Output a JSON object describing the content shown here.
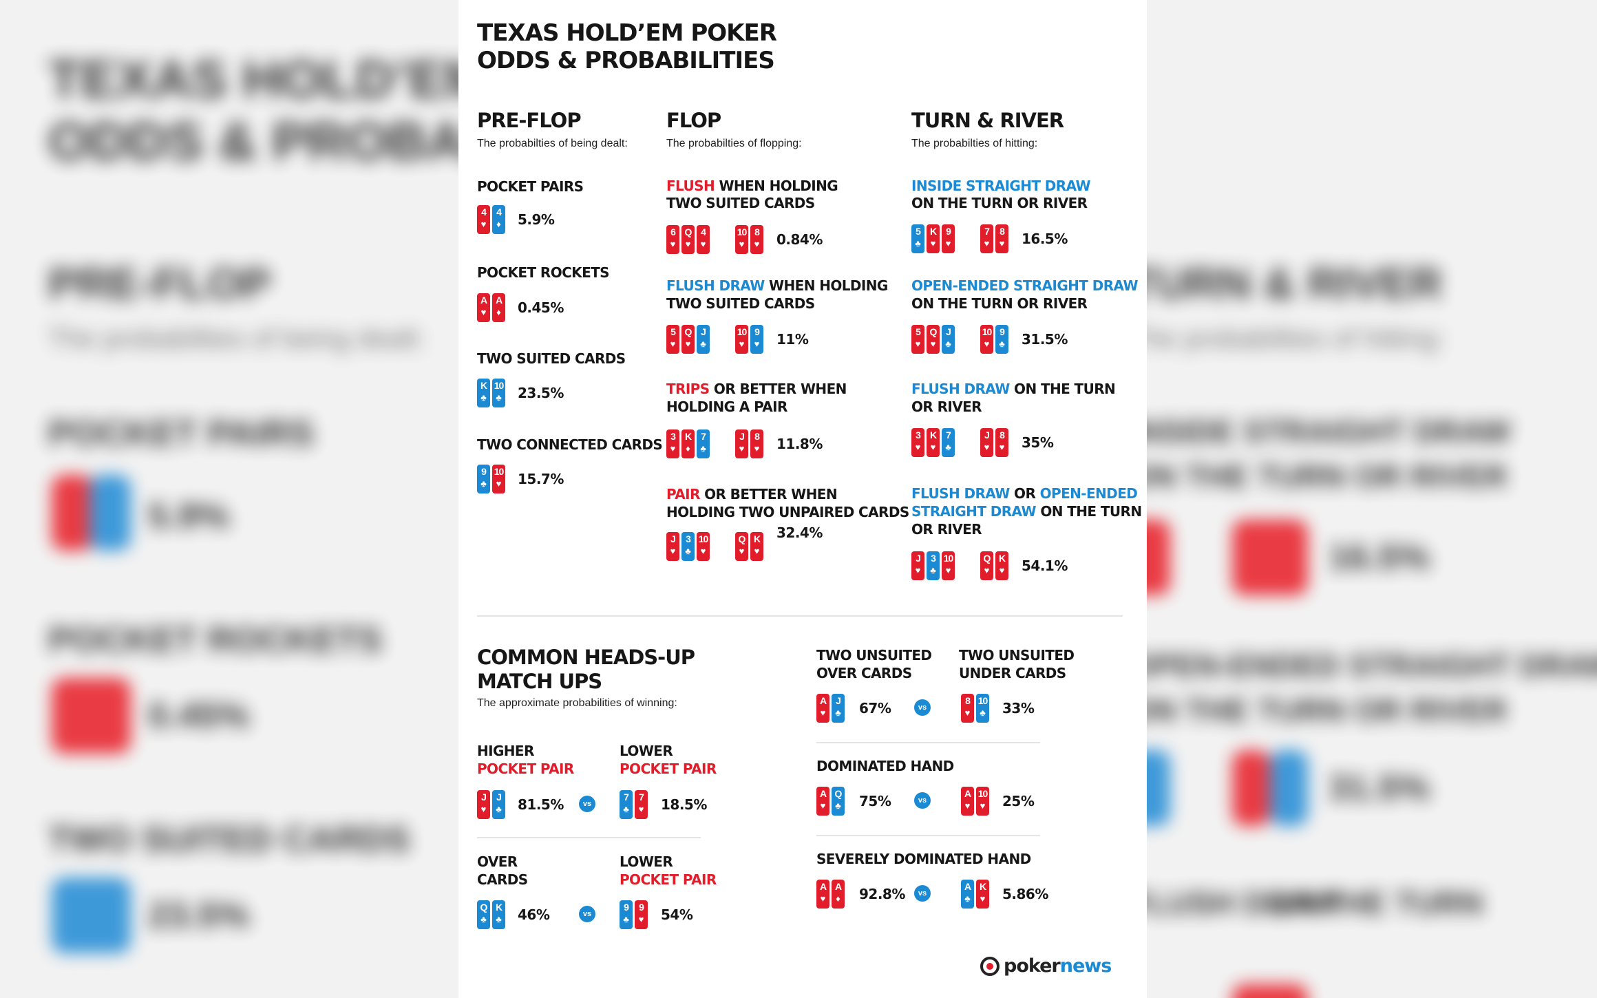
{
  "title": {
    "line1": "TEXAS HOLD’EM POKER",
    "line2": "ODDS & PROBABILITIES"
  },
  "preflop": {
    "heading": "PRE-FLOP",
    "sub": "The probabilties of being dealt:",
    "items": [
      {
        "label": "POCKET PAIRS",
        "pct": "5.9%",
        "cards": [
          {
            "rank": "4",
            "suit": "♥",
            "color": "red"
          },
          {
            "rank": "4",
            "suit": "♦",
            "color": "blue"
          }
        ]
      },
      {
        "label": "POCKET ROCKETS",
        "pct": "0.45%",
        "cards": [
          {
            "rank": "A",
            "suit": "♥",
            "color": "red"
          },
          {
            "rank": "A",
            "suit": "♦",
            "color": "red"
          }
        ]
      },
      {
        "label": "TWO SUITED CARDS",
        "pct": "23.5%",
        "cards": [
          {
            "rank": "K",
            "suit": "♣",
            "color": "blue"
          },
          {
            "rank": "10",
            "suit": "♣",
            "color": "blue"
          }
        ]
      },
      {
        "label": "TWO CONNECTED CARDS",
        "pct": "15.7%",
        "cards": [
          {
            "rank": "9",
            "suit": "♣",
            "color": "blue"
          },
          {
            "rank": "10",
            "suit": "♥",
            "color": "red"
          }
        ]
      }
    ]
  },
  "flop": {
    "heading": "FLOP",
    "sub": "The probabilties of flopping:",
    "items": [
      {
        "hl": "FLUSH",
        "rest1": " WHEN HOLDING",
        "line2": "TWO SUITED CARDS",
        "pct": "0.84%",
        "board": [
          {
            "rank": "6",
            "suit": "♥",
            "color": "red"
          },
          {
            "rank": "Q",
            "suit": "♥",
            "color": "red"
          },
          {
            "rank": "4",
            "suit": "♥",
            "color": "red"
          }
        ],
        "hand": [
          {
            "rank": "10",
            "suit": "♥",
            "color": "red"
          },
          {
            "rank": "8",
            "suit": "♥",
            "color": "red"
          }
        ]
      },
      {
        "hl": "FLUSH DRAW",
        "rest1": " WHEN HOLDING",
        "line2": "TWO SUITED CARDS",
        "pct": "11%",
        "board": [
          {
            "rank": "5",
            "suit": "♥",
            "color": "red"
          },
          {
            "rank": "Q",
            "suit": "♥",
            "color": "red"
          },
          {
            "rank": "J",
            "suit": "♣",
            "color": "blue"
          }
        ],
        "hand": [
          {
            "rank": "10",
            "suit": "♥",
            "color": "red"
          },
          {
            "rank": "9",
            "suit": "♥",
            "color": "blue"
          }
        ]
      },
      {
        "hl": "TRIPS",
        "rest1": " OR BETTER WHEN",
        "line2": "HOLDING A PAIR",
        "pct": "11.8%",
        "board": [
          {
            "rank": "3",
            "suit": "♥",
            "color": "red"
          },
          {
            "rank": "K",
            "suit": "♦",
            "color": "red"
          },
          {
            "rank": "7",
            "suit": "♣",
            "color": "blue"
          }
        ],
        "hand": [
          {
            "rank": "J",
            "suit": "♥",
            "color": "red"
          },
          {
            "rank": "8",
            "suit": "♥",
            "color": "red"
          }
        ]
      },
      {
        "hl": "PAIR",
        "rest1": " OR BETTER WHEN",
        "line2": "HOLDING TWO UNPAIRED CARDS",
        "pct": "32.4%",
        "board": [
          {
            "rank": "J",
            "suit": "♥",
            "color": "red"
          },
          {
            "rank": "3",
            "suit": "♣",
            "color": "blue"
          },
          {
            "rank": "10",
            "suit": "♥",
            "color": "red"
          }
        ],
        "hand": [
          {
            "rank": "Q",
            "suit": "♥",
            "color": "red"
          },
          {
            "rank": "K",
            "suit": "♥",
            "color": "red"
          }
        ]
      }
    ]
  },
  "turn_river": {
    "heading": "TURN & RIVER",
    "sub": "The probabilties of hitting:",
    "items": [
      {
        "l1a": "INSIDE STRAIGHT DRAW",
        "l1b": "",
        "l2a": "",
        "l2b": "ON THE TURN OR RIVER",
        "l3": "",
        "pct": "16.5%",
        "board": [
          {
            "rank": "5",
            "suit": "♣",
            "color": "blue"
          },
          {
            "rank": "K",
            "suit": "♥",
            "color": "red"
          },
          {
            "rank": "9",
            "suit": "♥",
            "color": "red"
          }
        ],
        "hand": [
          {
            "rank": "7",
            "suit": "♥",
            "color": "red"
          },
          {
            "rank": "8",
            "suit": "♥",
            "color": "red"
          }
        ]
      },
      {
        "l1a": "OPEN-ENDED STRAIGHT DRAW",
        "l1b": "",
        "l2a": "",
        "l2b": "ON THE TURN OR RIVER",
        "l3": "",
        "pct": "31.5%",
        "board": [
          {
            "rank": "5",
            "suit": "♥",
            "color": "red"
          },
          {
            "rank": "Q",
            "suit": "♥",
            "color": "red"
          },
          {
            "rank": "J",
            "suit": "♣",
            "color": "blue"
          }
        ],
        "hand": [
          {
            "rank": "10",
            "suit": "♥",
            "color": "red"
          },
          {
            "rank": "9",
            "suit": "♣",
            "color": "blue"
          }
        ]
      },
      {
        "l1a": "FLUSH DRAW",
        "l1b": " ON THE TURN",
        "l2a": "",
        "l2b": "OR RIVER",
        "l3": "",
        "pct": "35%",
        "board": [
          {
            "rank": "3",
            "suit": "♥",
            "color": "red"
          },
          {
            "rank": "K",
            "suit": "♥",
            "color": "red"
          },
          {
            "rank": "7",
            "suit": "♣",
            "color": "blue"
          }
        ],
        "hand": [
          {
            "rank": "J",
            "suit": "♥",
            "color": "red"
          },
          {
            "rank": "8",
            "suit": "♥",
            "color": "red"
          }
        ]
      },
      {
        "l1a": "FLUSH DRAW",
        "l1b": " OR ",
        "l1c": "OPEN-ENDED",
        "l2a": "STRAIGHT DRAW",
        "l2b": " ON THE TURN",
        "l3": "OR RIVER",
        "pct": "54.1%",
        "board": [
          {
            "rank": "J",
            "suit": "♥",
            "color": "red"
          },
          {
            "rank": "3",
            "suit": "♣",
            "color": "blue"
          },
          {
            "rank": "10",
            "suit": "♥",
            "color": "red"
          }
        ],
        "hand": [
          {
            "rank": "Q",
            "suit": "♥",
            "color": "red"
          },
          {
            "rank": "K",
            "suit": "♥",
            "color": "red"
          }
        ]
      }
    ]
  },
  "headsup": {
    "heading1": "COMMON HEADS-UP",
    "heading2": "MATCH UPS",
    "sub": "The approximate probabilities of winning:",
    "vs": "vs",
    "left": [
      {
        "a1": "HIGHER",
        "a2": "POCKET PAIR",
        "apct": "81.5%",
        "b1": "LOWER",
        "b2": "POCKET PAIR",
        "bpct": "18.5%",
        "acards": [
          {
            "rank": "J",
            "suit": "♥",
            "color": "red"
          },
          {
            "rank": "J",
            "suit": "♣",
            "color": "blue"
          }
        ],
        "bcards": [
          {
            "rank": "7",
            "suit": "♣",
            "color": "blue"
          },
          {
            "rank": "7",
            "suit": "♥",
            "color": "red"
          }
        ]
      },
      {
        "a1": "OVER",
        "a2": "CARDS",
        "apct": "46%",
        "b1": "LOWER",
        "b2": "POCKET PAIR",
        "bpct": "54%",
        "acards": [
          {
            "rank": "Q",
            "suit": "♣",
            "color": "blue"
          },
          {
            "rank": "K",
            "suit": "♣",
            "color": "blue"
          }
        ],
        "bcards": [
          {
            "rank": "9",
            "suit": "♣",
            "color": "blue"
          },
          {
            "rank": "9",
            "suit": "♥",
            "color": "red"
          }
        ]
      }
    ],
    "right": [
      {
        "a1": "TWO UNSUITED",
        "a2": "OVER CARDS",
        "apct": "67%",
        "b1": "TWO UNSUITED",
        "b2": "UNDER CARDS",
        "bpct": "33%",
        "acards": [
          {
            "rank": "A",
            "suit": "♥",
            "color": "red"
          },
          {
            "rank": "J",
            "suit": "♣",
            "color": "blue"
          }
        ],
        "bcards": [
          {
            "rank": "8",
            "suit": "♥",
            "color": "red"
          },
          {
            "rank": "10",
            "suit": "♣",
            "color": "blue"
          }
        ]
      },
      {
        "title": "DOMINATED HAND",
        "apct": "75%",
        "bpct": "25%",
        "acards": [
          {
            "rank": "A",
            "suit": "♥",
            "color": "red"
          },
          {
            "rank": "Q",
            "suit": "♣",
            "color": "blue"
          }
        ],
        "bcards": [
          {
            "rank": "A",
            "suit": "♥",
            "color": "red"
          },
          {
            "rank": "10",
            "suit": "♥",
            "color": "red"
          }
        ]
      },
      {
        "title": "SEVERELY DOMINATED HAND",
        "apct": "92.8%",
        "bpct": "5.86%",
        "acards": [
          {
            "rank": "A",
            "suit": "♥",
            "color": "red"
          },
          {
            "rank": "A",
            "suit": "♦",
            "color": "red"
          }
        ],
        "bcards": [
          {
            "rank": "A",
            "suit": "♣",
            "color": "blue"
          },
          {
            "rank": "K",
            "suit": "♥",
            "color": "red"
          }
        ]
      }
    ]
  },
  "logo": {
    "text1": "poker",
    "text2": "news"
  },
  "colors": {
    "red": "#e11d2c",
    "blue": "#1b8ad3",
    "text": "#161616"
  }
}
